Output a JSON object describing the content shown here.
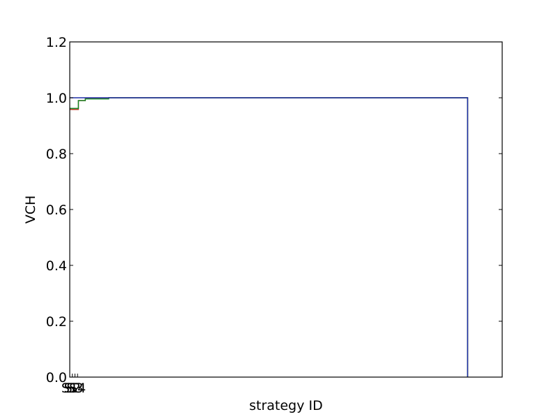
{
  "chart_data": {
    "type": "line",
    "xlabel": "strategy ID",
    "ylabel": "VCH",
    "ylim": [
      0,
      1.2
    ],
    "yticks": [
      "0.0",
      "0.2",
      "0.4",
      "0.6",
      "0.8",
      "1.0",
      "1.2"
    ],
    "xticks": [
      "S1",
      "S2",
      "S3",
      "S4"
    ],
    "grid": false,
    "series": [
      {
        "color": "#c0392b",
        "points": [
          [
            0,
            0.958
          ],
          [
            0.02,
            0.958
          ],
          [
            0.02,
            0.99
          ],
          [
            0.036,
            0.99
          ],
          [
            0.036,
            0.997
          ],
          [
            0.09,
            0.997
          ],
          [
            0.09,
            1.0
          ],
          [
            0.92,
            1.0
          ],
          [
            0.92,
            0.0
          ]
        ]
      },
      {
        "color": "#1a8a2a",
        "points": [
          [
            0,
            0.962
          ],
          [
            0.02,
            0.962
          ],
          [
            0.02,
            0.99
          ],
          [
            0.036,
            0.99
          ],
          [
            0.036,
            0.996
          ],
          [
            0.09,
            0.996
          ],
          [
            0.09,
            1.0
          ],
          [
            0.92,
            1.0
          ],
          [
            0.92,
            0.0
          ]
        ]
      },
      {
        "color": "#1f2fa8",
        "points": [
          [
            0,
            1.0
          ],
          [
            0.92,
            1.0
          ],
          [
            0.92,
            0.0
          ]
        ]
      }
    ]
  }
}
